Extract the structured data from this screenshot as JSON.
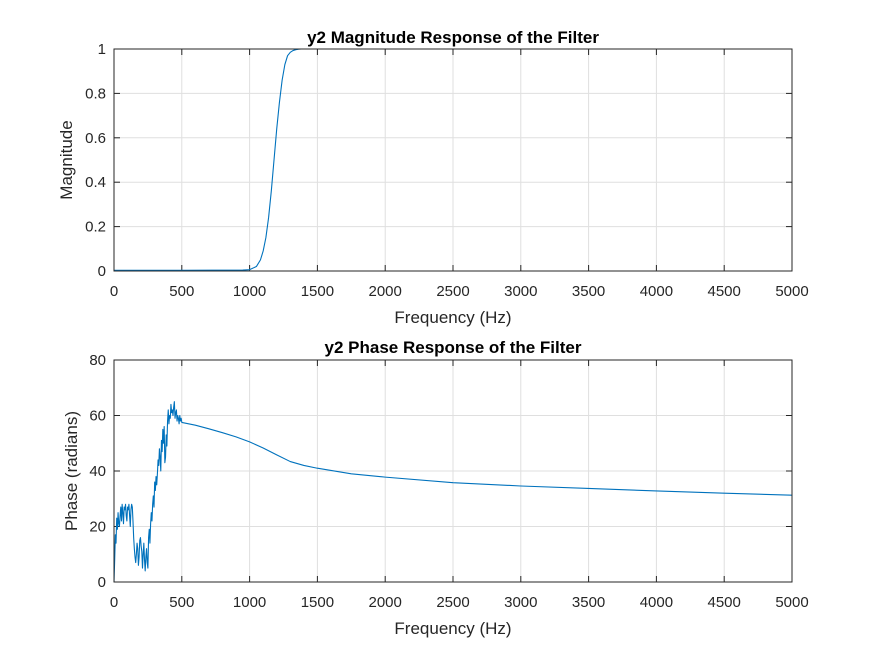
{
  "colors": {
    "line": "#0072BD",
    "axis": "#262626",
    "grid": "#dfdfdf",
    "background": "#ffffff"
  },
  "chart_data": [
    {
      "type": "line",
      "title": "y2 Magnitude Response of the Filter",
      "xlabel": "Frequency (Hz)",
      "ylabel": "Magnitude",
      "xlim": [
        0,
        5000
      ],
      "ylim": [
        0,
        1
      ],
      "grid": true,
      "xticks": [
        "0",
        "500",
        "1000",
        "1500",
        "2000",
        "2500",
        "3000",
        "3500",
        "4000",
        "4500",
        "5000"
      ],
      "yticks": [
        "0",
        "0.2",
        "0.4",
        "0.6",
        "0.8",
        "1"
      ],
      "series": [
        {
          "x": [
            0,
            500,
            950,
            1000,
            1050,
            1080,
            1100,
            1120,
            1140,
            1160,
            1180,
            1200,
            1220,
            1240,
            1260,
            1280,
            1300,
            1320,
            1340,
            1360,
            1380,
            1400,
            1450,
            1500,
            2000,
            3000,
            4000,
            5000
          ],
          "y": [
            0.003,
            0.003,
            0.004,
            0.006,
            0.02,
            0.05,
            0.09,
            0.15,
            0.24,
            0.36,
            0.5,
            0.64,
            0.76,
            0.86,
            0.93,
            0.97,
            0.985,
            0.993,
            0.997,
            0.999,
            1.0,
            1.0,
            1.0,
            1.0,
            1.0,
            1.0,
            1.0,
            1.0
          ]
        }
      ]
    },
    {
      "type": "line",
      "title": "y2 Phase Response of the Filter",
      "xlabel": "Frequency (Hz)",
      "ylabel": "Phase (radians)",
      "xlim": [
        0,
        5000
      ],
      "ylim": [
        0,
        80
      ],
      "grid": true,
      "xticks": [
        "0",
        "500",
        "1000",
        "1500",
        "2000",
        "2500",
        "3000",
        "3500",
        "4000",
        "4500",
        "5000"
      ],
      "yticks": [
        "0",
        "20",
        "40",
        "60",
        "80"
      ],
      "series": [
        {
          "x": [
            0,
            5,
            10,
            15,
            20,
            25,
            30,
            35,
            40,
            45,
            50,
            55,
            60,
            65,
            70,
            75,
            80,
            85,
            90,
            95,
            100,
            105,
            110,
            115,
            120,
            125,
            130,
            135,
            140,
            145,
            150,
            155,
            160,
            165,
            170,
            175,
            180,
            185,
            190,
            195,
            200,
            205,
            210,
            215,
            220,
            225,
            230,
            235,
            240,
            245,
            250,
            255,
            260,
            265,
            270,
            275,
            280,
            285,
            290,
            295,
            300,
            305,
            310,
            315,
            320,
            325,
            330,
            335,
            340,
            345,
            350,
            355,
            360,
            365,
            370,
            375,
            380,
            385,
            390,
            395,
            400,
            405,
            410,
            415,
            420,
            425,
            430,
            435,
            440,
            445,
            450,
            455,
            460,
            465,
            470,
            475,
            480,
            485,
            490,
            495,
            500,
            600,
            700,
            800,
            900,
            1000,
            1100,
            1200,
            1300,
            1400,
            1500,
            1750,
            2000,
            2500,
            3000,
            3500,
            4000,
            4500,
            5000
          ],
          "y": [
            0,
            8,
            17,
            14,
            23,
            19,
            25,
            21,
            20,
            24,
            27,
            22,
            28,
            25,
            21,
            27,
            26,
            28,
            24,
            22,
            27,
            26,
            28,
            24,
            20,
            26,
            28,
            27,
            22,
            16,
            12,
            9,
            7,
            10,
            14,
            12,
            6,
            9,
            15,
            16,
            13,
            11,
            5,
            10,
            14,
            8,
            4,
            9,
            12,
            7,
            5,
            16,
            19,
            14,
            21,
            25,
            22,
            28,
            31,
            27,
            36,
            33,
            38,
            35,
            39,
            44,
            42,
            48,
            45,
            40,
            51,
            47,
            55,
            50,
            56,
            43,
            45,
            53,
            49,
            58,
            62,
            57,
            60,
            59,
            64,
            61,
            62,
            60,
            63,
            65,
            59,
            61,
            62,
            58,
            60,
            59,
            57,
            60,
            58,
            59,
            57.5,
            56.5,
            55.2,
            53.8,
            52.3,
            50.5,
            48.3,
            45.8,
            43.4,
            42.0,
            41.0,
            39.0,
            37.8,
            35.8,
            34.6,
            33.7,
            32.8,
            32.0,
            31.3
          ]
        }
      ]
    }
  ]
}
